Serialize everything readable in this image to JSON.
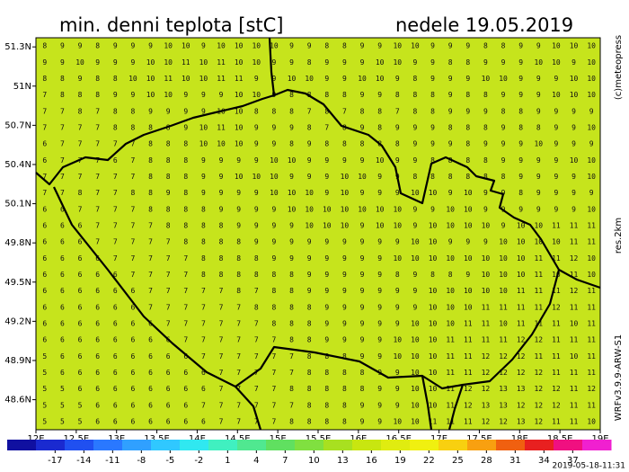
{
  "title": "min. denni teplota [stC]",
  "date": "nedele 19.05.2019",
  "credit": "(c)meteopress",
  "resolution": "res.2km",
  "model": "WRFv3.9.9-ARW-S1",
  "issued": "2019-05-18-11:31",
  "map": {
    "xlim": [
      12,
      19
    ],
    "ylim": [
      48.37,
      51.37
    ],
    "xticks": [
      {
        "value": 12,
        "label": "12E"
      },
      {
        "value": 12.5,
        "label": "12.5E"
      },
      {
        "value": 13,
        "label": "13E"
      },
      {
        "value": 13.5,
        "label": "13.5E"
      },
      {
        "value": 14,
        "label": "14E"
      },
      {
        "value": 14.5,
        "label": "14.5E"
      },
      {
        "value": 15,
        "label": "15E"
      },
      {
        "value": 15.5,
        "label": "15.5E"
      },
      {
        "value": 16,
        "label": "16E"
      },
      {
        "value": 16.5,
        "label": "16.5E"
      },
      {
        "value": 17,
        "label": "17E"
      },
      {
        "value": 17.5,
        "label": "17.5E"
      },
      {
        "value": 18,
        "label": "18E"
      },
      {
        "value": 18.5,
        "label": "18.5E"
      },
      {
        "value": 19,
        "label": "19E"
      }
    ],
    "yticks": [
      {
        "value": 51.3,
        "label": "51.3N"
      },
      {
        "value": 51,
        "label": "51N"
      },
      {
        "value": 50.7,
        "label": "50.7N"
      },
      {
        "value": 50.4,
        "label": "50.4N"
      },
      {
        "value": 50.1,
        "label": "50.1N"
      },
      {
        "value": 49.8,
        "label": "49.8N"
      },
      {
        "value": 49.5,
        "label": "49.5N"
      },
      {
        "value": 49.2,
        "label": "49.2N"
      },
      {
        "value": 48.9,
        "label": "48.9N"
      },
      {
        "value": 48.6,
        "label": "48.6N"
      }
    ],
    "grid_values": [
      [
        8,
        9,
        9,
        8,
        9,
        9,
        9,
        10,
        10,
        9,
        10,
        10,
        10,
        10,
        9,
        9,
        8,
        8,
        9,
        9,
        10,
        10,
        9,
        9,
        9,
        8,
        8,
        9,
        9,
        10,
        10,
        10
      ],
      [
        9,
        9,
        10,
        9,
        9,
        9,
        10,
        10,
        11,
        10,
        11,
        10,
        10,
        9,
        9,
        8,
        9,
        9,
        9,
        10,
        10,
        9,
        9,
        8,
        8,
        9,
        9,
        9,
        10,
        10,
        9,
        10
      ],
      [
        8,
        8,
        9,
        8,
        8,
        10,
        10,
        11,
        10,
        10,
        11,
        11,
        9,
        9,
        10,
        10,
        9,
        9,
        10,
        10,
        9,
        8,
        9,
        9,
        9,
        10,
        10,
        9,
        9,
        9,
        10,
        10
      ],
      [
        7,
        8,
        8,
        8,
        9,
        9,
        10,
        10,
        9,
        9,
        9,
        10,
        10,
        9,
        8,
        8,
        8,
        8,
        9,
        9,
        8,
        8,
        8,
        9,
        8,
        8,
        9,
        9,
        9,
        10,
        10,
        10
      ],
      [
        7,
        7,
        8,
        7,
        8,
        8,
        9,
        9,
        9,
        9,
        10,
        10,
        8,
        8,
        8,
        7,
        8,
        7,
        8,
        8,
        7,
        8,
        8,
        9,
        9,
        9,
        8,
        8,
        9,
        9,
        9,
        9
      ],
      [
        7,
        7,
        7,
        7,
        8,
        8,
        8,
        8,
        9,
        10,
        11,
        10,
        9,
        9,
        9,
        8,
        7,
        8,
        9,
        8,
        9,
        9,
        9,
        8,
        8,
        8,
        9,
        8,
        8,
        9,
        9,
        10
      ],
      [
        6,
        7,
        7,
        7,
        7,
        7,
        8,
        8,
        8,
        10,
        10,
        10,
        9,
        9,
        8,
        9,
        8,
        8,
        8,
        8,
        8,
        9,
        9,
        9,
        8,
        9,
        9,
        9,
        10,
        9,
        9,
        9
      ],
      [
        6,
        7,
        7,
        7,
        6,
        7,
        8,
        8,
        8,
        9,
        9,
        9,
        9,
        10,
        10,
        9,
        9,
        9,
        9,
        10,
        9,
        9,
        8,
        8,
        8,
        8,
        9,
        9,
        9,
        9,
        10,
        10
      ],
      [
        7,
        7,
        7,
        7,
        7,
        7,
        8,
        8,
        8,
        9,
        9,
        10,
        10,
        10,
        9,
        9,
        9,
        10,
        10,
        9,
        9,
        8,
        8,
        8,
        8,
        8,
        8,
        9,
        9,
        9,
        9,
        10
      ],
      [
        7,
        7,
        8,
        7,
        7,
        8,
        8,
        9,
        8,
        9,
        9,
        9,
        9,
        10,
        10,
        10,
        9,
        10,
        9,
        9,
        9,
        10,
        10,
        9,
        10,
        9,
        9,
        8,
        9,
        9,
        9,
        9
      ],
      [
        6,
        6,
        7,
        7,
        7,
        7,
        8,
        8,
        8,
        8,
        9,
        9,
        9,
        9,
        10,
        10,
        10,
        10,
        10,
        10,
        10,
        9,
        9,
        10,
        10,
        9,
        9,
        9,
        9,
        9,
        9,
        10
      ],
      [
        6,
        6,
        6,
        7,
        7,
        7,
        7,
        8,
        8,
        8,
        8,
        9,
        9,
        9,
        9,
        10,
        10,
        10,
        9,
        10,
        10,
        9,
        10,
        10,
        10,
        10,
        9,
        10,
        10,
        11,
        11,
        11
      ],
      [
        6,
        6,
        6,
        7,
        7,
        7,
        7,
        7,
        8,
        8,
        8,
        8,
        9,
        9,
        9,
        9,
        9,
        9,
        9,
        9,
        9,
        10,
        10,
        9,
        9,
        9,
        10,
        10,
        10,
        10,
        11,
        11
      ],
      [
        6,
        6,
        6,
        6,
        7,
        7,
        7,
        7,
        7,
        8,
        8,
        8,
        8,
        9,
        9,
        9,
        9,
        9,
        9,
        9,
        10,
        10,
        10,
        10,
        10,
        10,
        10,
        10,
        11,
        11,
        12,
        10
      ],
      [
        6,
        6,
        6,
        6,
        6,
        7,
        7,
        7,
        7,
        8,
        8,
        8,
        8,
        8,
        8,
        9,
        9,
        9,
        9,
        9,
        8,
        9,
        8,
        8,
        9,
        10,
        10,
        10,
        11,
        10,
        11,
        10
      ],
      [
        6,
        6,
        6,
        6,
        6,
        6,
        7,
        7,
        7,
        7,
        7,
        8,
        7,
        8,
        8,
        9,
        9,
        9,
        9,
        9,
        9,
        9,
        10,
        10,
        10,
        10,
        10,
        11,
        11,
        11,
        12,
        11
      ],
      [
        6,
        6,
        6,
        6,
        6,
        6,
        7,
        7,
        7,
        7,
        7,
        7,
        8,
        8,
        8,
        8,
        9,
        9,
        9,
        9,
        9,
        9,
        10,
        10,
        10,
        11,
        11,
        11,
        11,
        12,
        11,
        11
      ],
      [
        6,
        6,
        6,
        6,
        6,
        6,
        6,
        7,
        7,
        7,
        7,
        7,
        7,
        8,
        8,
        8,
        9,
        9,
        9,
        9,
        9,
        10,
        10,
        10,
        11,
        11,
        10,
        11,
        11,
        11,
        10,
        11
      ],
      [
        6,
        6,
        6,
        6,
        6,
        6,
        6,
        6,
        7,
        7,
        7,
        7,
        7,
        7,
        8,
        8,
        9,
        9,
        9,
        9,
        10,
        10,
        10,
        11,
        11,
        11,
        11,
        12,
        12,
        11,
        11,
        11
      ],
      [
        5,
        6,
        6,
        6,
        6,
        6,
        6,
        6,
        6,
        7,
        7,
        7,
        7,
        7,
        7,
        8,
        8,
        8,
        9,
        9,
        10,
        10,
        10,
        11,
        11,
        12,
        12,
        12,
        11,
        11,
        10,
        11
      ],
      [
        5,
        6,
        6,
        6,
        6,
        6,
        6,
        6,
        6,
        6,
        7,
        7,
        7,
        7,
        7,
        8,
        8,
        8,
        8,
        9,
        9,
        10,
        10,
        11,
        11,
        12,
        12,
        12,
        12,
        11,
        11,
        11
      ],
      [
        5,
        5,
        6,
        6,
        6,
        6,
        6,
        6,
        6,
        6,
        7,
        7,
        7,
        7,
        8,
        8,
        8,
        8,
        8,
        9,
        9,
        10,
        10,
        11,
        12,
        12,
        13,
        13,
        12,
        12,
        11,
        12
      ],
      [
        5,
        5,
        5,
        6,
        6,
        6,
        6,
        6,
        6,
        7,
        7,
        7,
        7,
        7,
        7,
        8,
        8,
        8,
        9,
        9,
        9,
        10,
        10,
        11,
        12,
        13,
        13,
        12,
        12,
        12,
        11,
        11
      ],
      [
        5,
        5,
        5,
        6,
        6,
        6,
        6,
        6,
        6,
        6,
        7,
        7,
        7,
        7,
        8,
        8,
        8,
        8,
        9,
        9,
        10,
        10,
        11,
        11,
        11,
        12,
        12,
        13,
        12,
        11,
        11,
        10
      ]
    ]
  },
  "colorbar": {
    "lim": [
      -22,
      41
    ],
    "ticks": [
      -17,
      -14,
      -11,
      -8,
      -5,
      -2,
      1,
      4,
      7,
      10,
      13,
      16,
      19,
      22,
      25,
      28,
      31,
      34,
      37
    ],
    "colors": [
      "#1010a0",
      "#1a2ad0",
      "#2050f0",
      "#2a78ff",
      "#30a0ff",
      "#30c8ff",
      "#30e8f0",
      "#40f0c0",
      "#50e890",
      "#60e060",
      "#80e040",
      "#a8e020",
      "#c8e610",
      "#e0ec10",
      "#f0f010",
      "#f8d010",
      "#f8a010",
      "#f06010",
      "#e82020",
      "#f01080",
      "#f020d0"
    ]
  }
}
